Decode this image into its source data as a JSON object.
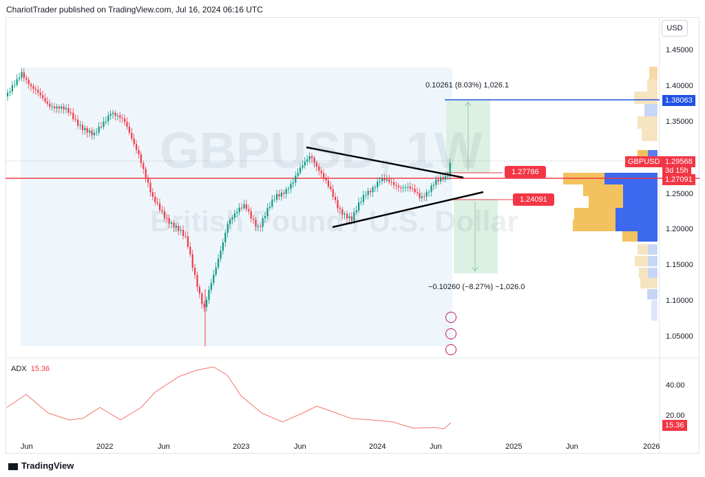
{
  "header": {
    "publisher": "ChariotTrader published on TradingView.com, Jul 16, 2024 06:16 UTC",
    "currency": "USD"
  },
  "watermark": {
    "symbol": "GBPUSD, 1W",
    "description": "British Pound / U.S. Dollar"
  },
  "price_axis": [
    "1.45000",
    "1.40000",
    "1.35000",
    "1.25000",
    "1.20000",
    "1.15000",
    "1.10000",
    "1.05000"
  ],
  "badges": {
    "target_upper": "1.38063",
    "symbol_tag": "GBPUSD",
    "current_price": "1.29568",
    "countdown": "3d 15h",
    "red_line": "1.27091",
    "resistance": "1.27786",
    "support": "1.24091"
  },
  "measure": {
    "up": "0.10261 (8.03%) 1,026.1",
    "down": "−0.10260 (−8.27%) −1,026.0"
  },
  "adx": {
    "name": "ADX",
    "value": "15.36",
    "axis": [
      "40.00",
      "20.00"
    ],
    "current_badge": "15.36"
  },
  "time_axis": [
    "Jun",
    "2022",
    "Jun",
    "2023",
    "Jun",
    "2024",
    "Jun",
    "2025",
    "Jun",
    "2026"
  ],
  "footer": {
    "logo": "TradingView"
  },
  "colors": {
    "up": "#089981",
    "down": "#f23645",
    "red_line": "#f23645",
    "target_line": "#1e53e5",
    "trendline": "#000000",
    "adx": "#f4736b"
  }
}
